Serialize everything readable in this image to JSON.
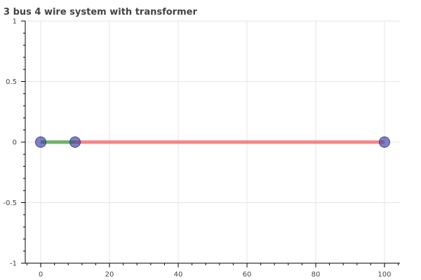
{
  "chart_data": {
    "type": "scatter",
    "title": "3 bus 4 wire system with transformer",
    "xlabel": "",
    "ylabel": "",
    "xlim": [
      -4.5,
      104.5
    ],
    "ylim": [
      -1,
      1
    ],
    "grid": true,
    "x_ticks": [
      0,
      20,
      40,
      60,
      80,
      100
    ],
    "x_tick_labels": [
      "0",
      "20",
      "40",
      "60",
      "80",
      "100"
    ],
    "x_minor_step": 4,
    "y_ticks": [
      1,
      0.5,
      0,
      -0.5,
      -1
    ],
    "y_tick_labels": [
      "1",
      "0.5",
      "0",
      "-0.5",
      "-1"
    ],
    "y_minor_step": 0.1,
    "branches": [
      {
        "from": [
          0,
          0
        ],
        "to": [
          10,
          0
        ],
        "color": "#4d9f43"
      },
      {
        "from": [
          10,
          0
        ],
        "to": [
          100,
          0
        ],
        "color": "#f26a6a"
      }
    ],
    "buses": {
      "x": [
        0,
        10,
        100
      ],
      "y": [
        0,
        0,
        0
      ],
      "color": "#3c3fa0"
    }
  }
}
